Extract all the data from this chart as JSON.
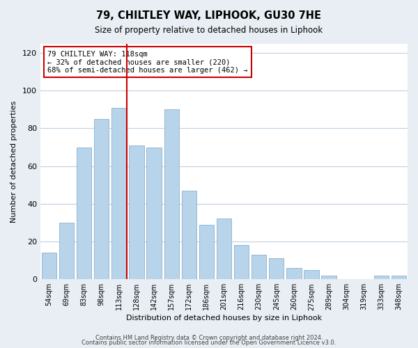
{
  "title1": "79, CHILTLEY WAY, LIPHOOK, GU30 7HE",
  "title2": "Size of property relative to detached houses in Liphook",
  "xlabel": "Distribution of detached houses by size in Liphook",
  "ylabel": "Number of detached properties",
  "categories": [
    "54sqm",
    "69sqm",
    "83sqm",
    "98sqm",
    "113sqm",
    "128sqm",
    "142sqm",
    "157sqm",
    "172sqm",
    "186sqm",
    "201sqm",
    "216sqm",
    "230sqm",
    "245sqm",
    "260sqm",
    "275sqm",
    "289sqm",
    "304sqm",
    "319sqm",
    "333sqm",
    "348sqm"
  ],
  "values": [
    14,
    30,
    70,
    85,
    91,
    71,
    70,
    90,
    47,
    29,
    32,
    18,
    13,
    11,
    6,
    5,
    2,
    0,
    0,
    2,
    2
  ],
  "bar_color": "#b8d4ea",
  "bar_edge_color": "#8ab0cc",
  "vline_x_index": 4,
  "vline_color": "#cc0000",
  "annotation_text": "79 CHILTLEY WAY: 118sqm\n← 32% of detached houses are smaller (220)\n68% of semi-detached houses are larger (462) →",
  "annotation_box_edge_color": "#cc0000",
  "annotation_box_face_color": "#ffffff",
  "ylim": [
    0,
    125
  ],
  "yticks": [
    0,
    20,
    40,
    60,
    80,
    100,
    120
  ],
  "footer1": "Contains HM Land Registry data © Crown copyright and database right 2024.",
  "footer2": "Contains public sector information licensed under the Open Government Licence v3.0.",
  "background_color": "#e8eef4",
  "plot_bg_color": "#ffffff",
  "grid_color": "#c0d0e0"
}
